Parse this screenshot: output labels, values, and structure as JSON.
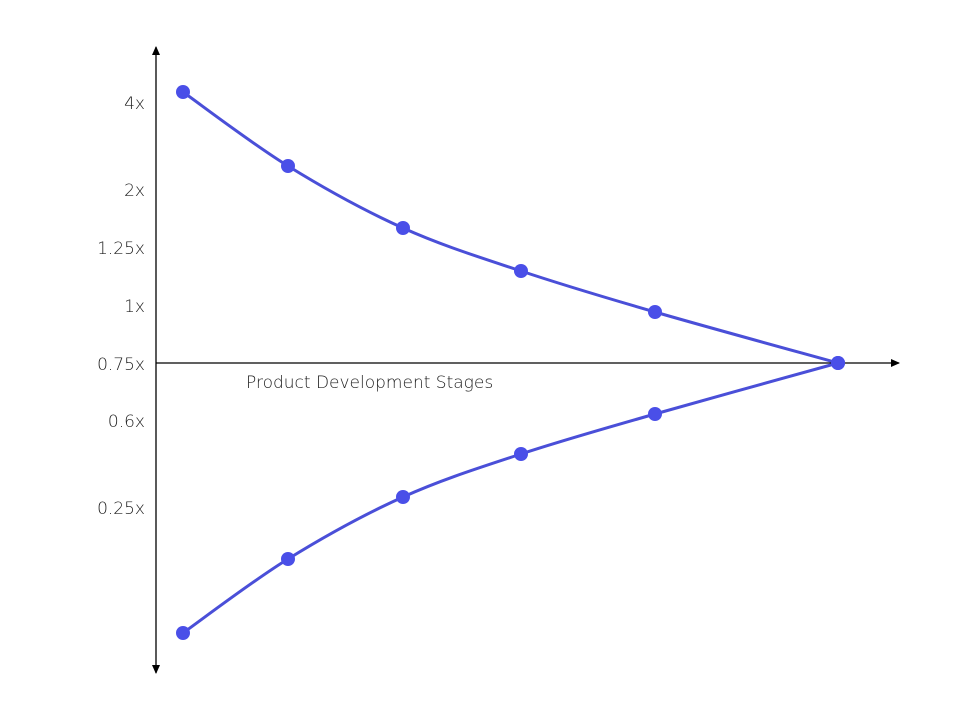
{
  "y_axis": {
    "labels": [
      "4x",
      "2x",
      "1.25x",
      "1x",
      "0.75x",
      "0.6x",
      "0.25x"
    ]
  },
  "x_axis": {
    "label": "Product Development Stages"
  }
}
